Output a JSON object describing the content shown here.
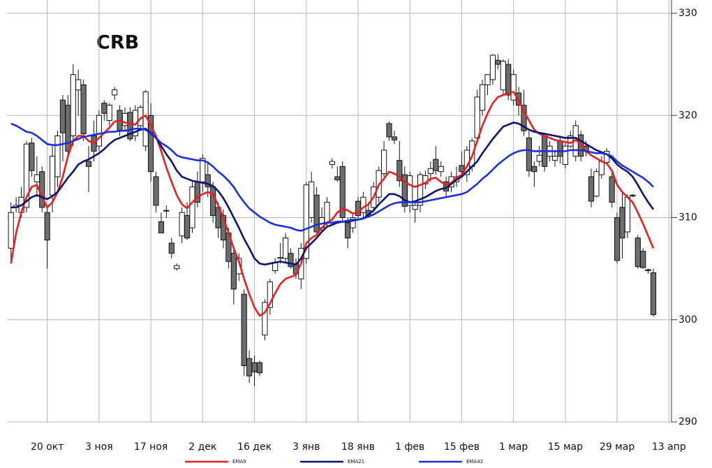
{
  "chart_data": {
    "type": "candlestick",
    "title": "CRB",
    "categories": [
      null,
      null,
      null,
      null,
      null,
      null,
      null,
      "20 окт",
      null,
      null,
      null,
      null,
      null,
      null,
      null,
      null,
      null,
      "3 ноя",
      null,
      null,
      null,
      null,
      null,
      null,
      null,
      null,
      null,
      "17 ноя",
      null,
      null,
      null,
      null,
      null,
      null,
      null,
      null,
      null,
      "2 дек",
      null,
      null,
      null,
      null,
      null,
      null,
      null,
      null,
      null,
      "16 дек",
      null,
      null,
      null,
      null,
      null,
      null,
      null,
      null,
      null,
      "3 янв",
      null,
      null,
      null,
      null,
      null,
      null,
      null,
      null,
      null,
      "18 янв",
      null,
      null,
      null,
      null,
      null,
      null,
      null,
      null,
      null,
      "1 фев",
      null,
      null,
      null,
      null,
      null,
      null,
      null,
      null,
      null,
      "15 фев",
      null,
      null,
      null,
      null,
      null,
      null,
      null,
      null,
      null,
      "1 мар",
      null,
      null,
      null,
      null,
      null,
      null,
      null,
      null,
      null,
      "15 мар",
      null,
      null,
      null,
      null,
      null,
      null,
      null,
      null,
      null,
      "29 мар",
      null,
      null,
      null,
      null,
      null,
      null,
      null,
      null,
      null,
      "13 апр"
    ],
    "open": [
      307,
      311,
      310.5,
      311,
      317.3,
      313.5,
      314.5,
      310.5,
      312.2,
      314,
      321.5,
      321,
      318,
      322.5,
      323,
      315.5,
      318,
      317,
      321.2,
      319.5,
      322,
      320.5,
      319,
      320.3,
      318,
      319,
      317,
      320,
      314,
      309.6,
      310.7,
      307.5,
      305,
      308.2,
      310.2,
      309,
      313.5,
      313.5,
      314.2,
      313,
      311,
      310.2,
      308.5,
      306.5,
      304.5,
      302.5,
      296.2,
      295.8,
      295.8,
      298.5,
      301.2,
      304.8,
      306,
      306,
      306.5,
      305.5,
      304,
      306,
      310,
      312.2,
      309,
      309.5,
      315.2,
      314,
      315,
      309.5,
      309,
      311.6,
      310.5,
      310.7,
      311,
      312,
      314.3,
      319.2,
      317.9,
      315.6,
      314.2,
      311.2,
      310.8,
      311.2,
      313.3,
      314.3,
      315.7,
      314.5,
      313.5,
      313,
      313.5,
      315.1,
      314.2,
      315,
      317.8,
      320.5,
      323,
      323.5,
      325.4,
      322.5,
      325,
      321.5,
      322.2,
      321,
      317.8,
      315,
      315.5,
      318,
      316,
      315.6,
      317.5,
      315.2,
      317,
      316,
      318.1,
      317,
      314,
      312.1,
      314.2,
      315.4,
      314,
      310,
      311,
      308.6,
      312.2,
      308,
      306.7,
      304.9,
      304.6,
      null,
      null,
      null
    ],
    "high": [
      311.5,
      312,
      313,
      317.5,
      317.8,
      316,
      315,
      311,
      317,
      318.5,
      322,
      322,
      325,
      324.5,
      323.5,
      317,
      319.5,
      320.5,
      321.5,
      321.2,
      322.8,
      321,
      320.8,
      320.8,
      321,
      321,
      322.5,
      321.2,
      314.5,
      310.5,
      311.2,
      308,
      305.5,
      311,
      311.5,
      313.5,
      314.5,
      316.2,
      315.5,
      313.5,
      311.5,
      310.8,
      309,
      307,
      306.5,
      303,
      297,
      296.5,
      296,
      302,
      304,
      306,
      307.5,
      308.5,
      307,
      306,
      307.5,
      313.5,
      314.5,
      313,
      311,
      312,
      315.8,
      315,
      315.5,
      310,
      310.5,
      312,
      312.5,
      311.5,
      313.5,
      315,
      317.5,
      319.4,
      318.5,
      317.5,
      315,
      314.5,
      311.5,
      314.5,
      314.6,
      315.5,
      317,
      315.5,
      314,
      314.5,
      315,
      316.5,
      317,
      317.8,
      322.5,
      323.5,
      324,
      326,
      326,
      325.5,
      325.5,
      324.5,
      322.8,
      322.5,
      318.5,
      315.5,
      317,
      318.2,
      317.5,
      316.5,
      318,
      317.5,
      318.5,
      319.5,
      318.5,
      317.5,
      314.8,
      314.8,
      316,
      316.8,
      314.5,
      310.5,
      312.5,
      312.3,
      312.3,
      308.3,
      307,
      305,
      305,
      null,
      null,
      null
    ],
    "low": [
      305.5,
      310.5,
      310,
      310.5,
      314,
      312,
      310.5,
      305,
      310.5,
      313,
      315.5,
      316,
      317,
      320,
      317.5,
      312.5,
      315.5,
      316.5,
      319.5,
      319,
      321.5,
      318,
      318.5,
      317.5,
      317.5,
      318.5,
      316.5,
      313.5,
      310.5,
      308.5,
      310,
      306,
      304.8,
      307.5,
      307.8,
      308.5,
      311,
      312.5,
      312,
      309.5,
      308,
      307,
      305,
      301.5,
      303.8,
      294.5,
      293.8,
      293.5,
      294.5,
      298,
      300.5,
      304.5,
      305.5,
      305.5,
      305,
      304,
      303,
      305.5,
      309.5,
      308.5,
      308.5,
      309,
      314.8,
      313.5,
      309.5,
      307,
      308.5,
      309.8,
      310,
      310,
      310.5,
      311.5,
      314,
      317.5,
      317.2,
      313,
      310.5,
      310.5,
      309.5,
      310.5,
      312.8,
      313.5,
      314.2,
      314,
      312,
      312.5,
      313,
      314.3,
      313.5,
      314.5,
      317.2,
      320,
      322,
      323,
      324.5,
      322,
      321.5,
      321,
      320,
      318,
      314,
      313,
      315,
      314.5,
      315.5,
      315,
      315.3,
      314.8,
      316.8,
      315.5,
      315.5,
      316,
      311,
      312,
      313.8,
      315.2,
      311,
      305.5,
      306,
      308,
      312,
      305,
      305,
      304.5,
      300.3,
      null,
      null,
      null
    ],
    "close": [
      310.5,
      311.2,
      312,
      317.2,
      314.6,
      314.2,
      311,
      307.8,
      316,
      318,
      318.3,
      316.5,
      324,
      323.5,
      318.2,
      315,
      316.5,
      320,
      320.2,
      321,
      322.5,
      318.5,
      320.2,
      317.7,
      320.5,
      320.8,
      322.3,
      314.5,
      311.2,
      308.5,
      310.7,
      306.5,
      305.3,
      310.5,
      308,
      313,
      311.5,
      315.8,
      313,
      310.2,
      309,
      307.8,
      305.7,
      303,
      306,
      295.5,
      294.5,
      294.9,
      294.8,
      301.7,
      303.7,
      305.6,
      306.1,
      308,
      305.2,
      304.5,
      307,
      313.2,
      313.5,
      308.6,
      310,
      311.5,
      315.5,
      313.7,
      310,
      308,
      310,
      310.2,
      312,
      310.2,
      313,
      314.6,
      316.6,
      317.9,
      317.6,
      313.6,
      311.1,
      314.1,
      311.2,
      314.2,
      314.1,
      314.8,
      314.6,
      315,
      312.6,
      314,
      314,
      314.5,
      316.6,
      317.5,
      321.8,
      323,
      324,
      325.9,
      325,
      325.3,
      322,
      324,
      321,
      318.5,
      314.6,
      314.5,
      316.1,
      315,
      317,
      316,
      316,
      317,
      318,
      319,
      316,
      316.5,
      311.6,
      314.5,
      315.5,
      316.5,
      311.5,
      305.8,
      308,
      312,
      312.1,
      305.2,
      305.1,
      304.8,
      300.5,
      null,
      null,
      null
    ],
    "up_color": "#ffffff",
    "down_color": "#6d6d6d",
    "series": [
      {
        "name": "EMA9",
        "color": "#ee1c1c",
        "values": [
          305.5,
          308.5,
          310.5,
          312,
          313,
          313.2,
          312,
          311,
          311.5,
          312.5,
          314,
          316,
          317.5,
          318,
          318,
          317.5,
          317.3,
          317.8,
          318.3,
          318.8,
          319.4,
          319.5,
          319.3,
          319.2,
          319.1,
          319.7,
          320,
          319,
          318,
          316.5,
          314.9,
          313.5,
          312.2,
          311.3,
          310.9,
          311.5,
          312,
          312.3,
          312.5,
          312.3,
          311.2,
          310,
          308.5,
          307,
          305.7,
          304,
          302.5,
          301.2,
          300.4,
          300.7,
          301.6,
          302.6,
          303.5,
          304,
          304.2,
          304.4,
          305.5,
          307.5,
          308,
          308.3,
          309,
          309.5,
          309.8,
          310.5,
          310.9,
          310.7,
          310.4,
          310.5,
          311,
          311.3,
          312,
          313.2,
          313.8,
          314.5,
          314.3,
          314,
          313.5,
          313.2,
          313,
          313.2,
          313.4,
          313.8,
          313.9,
          313.5,
          313.2,
          313.4,
          313.9,
          314.2,
          315,
          316,
          317.5,
          319,
          320.2,
          321.2,
          321.8,
          322,
          322.2,
          322.3,
          321.5,
          320.4,
          319.5,
          318.6,
          318.2,
          318,
          317.8,
          317.6,
          317.5,
          317.4,
          317.3,
          317.6,
          317.2,
          316.5,
          316.1,
          315.8,
          315.5,
          315.3,
          314.6,
          313.2,
          312.5,
          312,
          311.5,
          310.5,
          309.4,
          308.2,
          307,
          null,
          null,
          null
        ]
      },
      {
        "name": "EMA21",
        "color": "#0b1570",
        "values": [
          311,
          311,
          311.2,
          311.6,
          312,
          312.2,
          312,
          311.8,
          312.1,
          312.5,
          313.2,
          313.9,
          314.5,
          315.2,
          315.5,
          315.7,
          316,
          316.3,
          316.7,
          317.2,
          317.6,
          317.8,
          318,
          318.2,
          318.4,
          318.6,
          318.7,
          318.3,
          317.8,
          317,
          316.2,
          315.5,
          314.6,
          314,
          313.8,
          313.6,
          313.5,
          313.4,
          313.3,
          313.1,
          312.6,
          311.9,
          311,
          310,
          309,
          307.9,
          307,
          306,
          305.5,
          305.4,
          305.5,
          305.6,
          305.7,
          305.6,
          305.5,
          305.4,
          306,
          307,
          307.5,
          308,
          308.6,
          309.1,
          309.3,
          309.5,
          309.6,
          309.6,
          309.7,
          309.8,
          309.9,
          310.3,
          310.7,
          311.3,
          311.8,
          312.3,
          312.3,
          312.1,
          311.7,
          311.5,
          311.6,
          311.8,
          312,
          312.3,
          312.6,
          312.8,
          312.9,
          313.3,
          313.7,
          314,
          314.5,
          315,
          315.5,
          316.3,
          317,
          317.7,
          318.3,
          318.9,
          319.1,
          319.3,
          319.2,
          318.9,
          318.6,
          318.4,
          318.3,
          318.2,
          318.1,
          318,
          317.9,
          317.8,
          317.8,
          317.8,
          317.5,
          317.2,
          316.9,
          316.6,
          316.4,
          316.2,
          315.8,
          315.2,
          314.8,
          314.5,
          314,
          313.2,
          312.3,
          311.5,
          310.8,
          null,
          null,
          null
        ]
      },
      {
        "name": "EMA42",
        "color": "#1a2fe0",
        "values": [
          319.2,
          319,
          318.7,
          318.4,
          318.3,
          318,
          317.6,
          317.2,
          317.1,
          317.1,
          317.2,
          317.3,
          317.5,
          317.7,
          317.9,
          318,
          318.1,
          318.2,
          318.3,
          318.4,
          318.4,
          318.5,
          318.5,
          318.6,
          318.7,
          318.7,
          318.6,
          318.2,
          317.8,
          317.3,
          317,
          316.6,
          316.1,
          315.9,
          315.8,
          315.7,
          315.6,
          315.6,
          315.4,
          315,
          314.5,
          314.1,
          313.6,
          313,
          312.2,
          311.5,
          310.9,
          310.5,
          310.1,
          309.8,
          309.5,
          309.3,
          309.2,
          309.1,
          309,
          308.8,
          308.7,
          308.9,
          309.1,
          309.3,
          309.4,
          309.5,
          309.5,
          309.6,
          309.6,
          309.7,
          309.8,
          309.8,
          309.9,
          310.1,
          310.3,
          310.6,
          310.9,
          311.2,
          311.4,
          311.5,
          311.5,
          311.5,
          311.5,
          311.5,
          311.6,
          311.7,
          311.8,
          311.9,
          312,
          312.1,
          312.2,
          312.3,
          312.5,
          312.9,
          313.3,
          313.8,
          314.2,
          314.7,
          315.2,
          315.6,
          316,
          316.3,
          316.5,
          316.6,
          316.6,
          316.5,
          316.5,
          316.5,
          316.5,
          316.5,
          316.5,
          316.5,
          316.6,
          316.6,
          316.6,
          316.5,
          316.4,
          316.3,
          316.3,
          316.2,
          316,
          315.5,
          315.1,
          314.8,
          314.5,
          314.2,
          313.9,
          313.5,
          313,
          null,
          null,
          null
        ]
      }
    ],
    "ylim": [
      290,
      330
    ],
    "yticks": [
      290,
      300,
      310,
      320,
      330
    ],
    "grid": true,
    "legend": "bottom"
  }
}
